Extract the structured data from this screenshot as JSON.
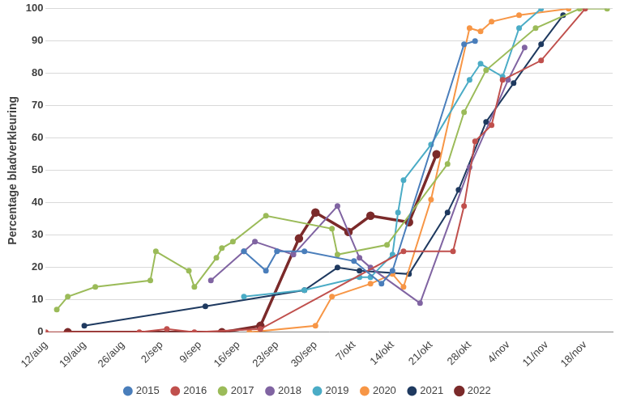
{
  "chart_data": {
    "type": "line",
    "y_label": "Percentage bladverkleuring",
    "xlim": [
      0,
      103
    ],
    "xticks": [
      {
        "value": 0,
        "label": "12/aug"
      },
      {
        "value": 7,
        "label": "19/aug"
      },
      {
        "value": 14,
        "label": "26/aug"
      },
      {
        "value": 21,
        "label": "2/sep"
      },
      {
        "value": 28,
        "label": "9/sep"
      },
      {
        "value": 35,
        "label": "16/sep"
      },
      {
        "value": 42,
        "label": "23/sep"
      },
      {
        "value": 49,
        "label": "30/sep"
      },
      {
        "value": 56,
        "label": "7/okt"
      },
      {
        "value": 63,
        "label": "14/okt"
      },
      {
        "value": 70,
        "label": "21/okt"
      },
      {
        "value": 77,
        "label": "28/okt"
      },
      {
        "value": 84,
        "label": "4/nov"
      },
      {
        "value": 91,
        "label": "11/nov"
      },
      {
        "value": 98,
        "label": "18/nov"
      }
    ],
    "ylim": [
      0,
      100
    ],
    "yticks": [
      0,
      10,
      20,
      30,
      40,
      50,
      60,
      70,
      80,
      90,
      100
    ],
    "grid": true,
    "legend": "bottom",
    "marker": "circle",
    "series": [
      {
        "name": "2015",
        "color": "#4a7ebb",
        "x": [
          36,
          40,
          42,
          47,
          56,
          61,
          63,
          76,
          78
        ],
        "values": [
          25,
          19,
          25,
          25,
          22,
          15,
          19,
          89,
          90
        ]
      },
      {
        "name": "2016",
        "color": "#c0504d",
        "x": [
          0,
          17,
          22,
          27,
          39,
          65,
          74,
          76,
          78,
          81,
          83,
          90,
          98
        ],
        "values": [
          0,
          0,
          1,
          0,
          1,
          25,
          25,
          39,
          59,
          64,
          78,
          84,
          100
        ]
      },
      {
        "name": "2017",
        "color": "#9bbb59",
        "x": [
          2,
          4,
          9,
          19,
          20,
          26,
          27,
          31,
          32,
          34,
          40,
          52,
          53,
          62,
          73,
          76,
          80,
          89,
          97,
          102
        ],
        "values": [
          7,
          11,
          14,
          16,
          25,
          19,
          14,
          23,
          26,
          28,
          36,
          32,
          24,
          27,
          52,
          68,
          81,
          94,
          100,
          100
        ]
      },
      {
        "name": "2018",
        "color": "#8064a2",
        "x": [
          30,
          36,
          38,
          45,
          53,
          57,
          59,
          68,
          77,
          84,
          87
        ],
        "values": [
          16,
          25,
          28,
          24,
          39,
          23,
          20,
          9,
          51,
          78,
          88
        ]
      },
      {
        "name": "2019",
        "color": "#4bacc6",
        "x": [
          36,
          47,
          57,
          59,
          63,
          64,
          65,
          70,
          77,
          79,
          83,
          86,
          90
        ],
        "values": [
          11,
          13,
          17,
          17,
          24,
          37,
          47,
          58,
          78,
          83,
          79,
          94,
          100
        ]
      },
      {
        "name": "2020",
        "color": "#f79646",
        "x": [
          37,
          49,
          52,
          59,
          63,
          65,
          70,
          77,
          79,
          81,
          86,
          95
        ],
        "values": [
          0,
          2,
          11,
          15,
          18,
          14,
          41,
          94,
          93,
          96,
          98,
          100
        ]
      },
      {
        "name": "2021",
        "color": "#1f3a60",
        "x": [
          7,
          29,
          47,
          53,
          57,
          66,
          73,
          75,
          80,
          85,
          90,
          94
        ],
        "values": [
          2,
          8,
          13,
          20,
          19,
          18,
          37,
          44,
          65,
          77,
          89,
          98
        ]
      },
      {
        "name": "2022",
        "color": "#7b2a2a",
        "x": [
          4,
          32,
          39,
          46,
          49,
          55,
          59,
          66,
          71
        ],
        "values": [
          0,
          0,
          2,
          29,
          37,
          31,
          36,
          34,
          55
        ]
      }
    ]
  }
}
